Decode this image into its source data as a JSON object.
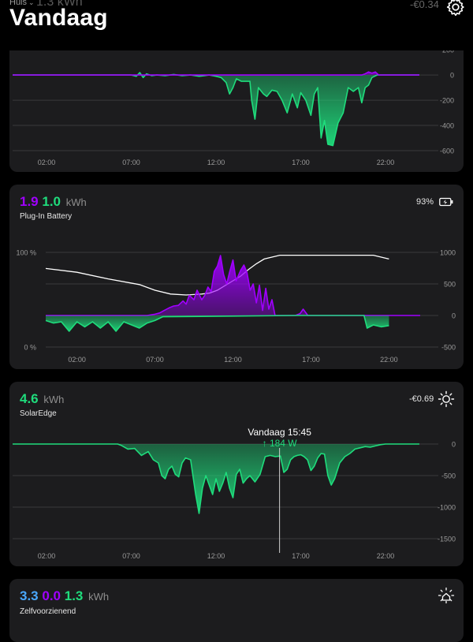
{
  "header": {
    "home_label": "Huis",
    "title": "Vandaag",
    "ghost_partial": "1.3 kWh",
    "ghost_amount": "-€0.34"
  },
  "colors": {
    "grid": "#1fdc7c",
    "purple": "#a000ff",
    "blue": "#4aa8ff",
    "card": "#1c1c1e",
    "background": "#000000"
  },
  "cards": {
    "grid": {
      "yticks": [
        "200",
        "0",
        "-200",
        "-400",
        "-600"
      ],
      "xticks": [
        "02:00",
        "07:00",
        "12:00",
        "17:00",
        "22:00"
      ]
    },
    "battery": {
      "val1": "1.9",
      "val2": "1.0",
      "unit": "kWh",
      "name": "Plug-In Battery",
      "percent": "93%",
      "left_ticks": [
        "100 %",
        "0 %"
      ],
      "yticks": [
        "1000",
        "500",
        "0",
        "-500"
      ],
      "xticks": [
        "02:00",
        "07:00",
        "12:00",
        "17:00",
        "22:00"
      ]
    },
    "solar": {
      "val": "4.6",
      "unit": "kWh",
      "name": "SolarEdge",
      "amount": "-€0.69",
      "tooltip_time": "Vandaag 15:45",
      "tooltip_value": "184 W",
      "yticks": [
        "-1500",
        "-1000",
        "-500",
        "0"
      ],
      "xticks": [
        "02:00",
        "07:00",
        "12:00",
        "17:00",
        "22:00"
      ]
    },
    "self": {
      "val1": "3.3",
      "val2": "0.0",
      "val3": "1.3",
      "unit": "kWh",
      "name": "Zelfvoorzienend"
    }
  },
  "chart_data": [
    {
      "type": "area",
      "xrange": [
        0,
        24
      ],
      "ylim": [
        -650,
        220
      ],
      "series": [
        {
          "color": "#1fdc7c",
          "x": [
            0,
            7,
            7.3,
            7.5,
            7.7,
            7.9,
            8.2,
            8.5,
            9,
            9.5,
            10,
            10.5,
            11,
            11.3,
            11.6,
            12,
            12.3,
            12.6,
            12.8,
            13,
            13.2,
            13.5,
            14,
            14.1,
            14.3,
            14.5,
            14.8,
            15,
            15.3,
            15.6,
            15.9,
            16.2,
            16.5,
            16.8,
            17,
            17.3,
            17.6,
            17.8,
            18,
            18.2,
            18.4,
            18.6,
            18.9,
            19.2,
            19.5,
            19.8,
            20.1,
            20.4,
            20.6,
            20.8,
            21,
            21.2,
            21.5,
            22,
            24
          ],
          "y": [
            0,
            0,
            -10,
            20,
            -20,
            10,
            -5,
            0,
            -5,
            5,
            -5,
            0,
            -10,
            -5,
            0,
            -10,
            -20,
            -60,
            -150,
            -100,
            -30,
            -50,
            -50,
            -200,
            -350,
            -100,
            -150,
            -170,
            -120,
            -130,
            -200,
            -300,
            -150,
            -260,
            -140,
            -200,
            -320,
            -150,
            -100,
            -500,
            -360,
            -550,
            -560,
            -380,
            -300,
            -100,
            -130,
            -100,
            -220,
            -100,
            -80,
            -20,
            0,
            0,
            0
          ]
        },
        {
          "color": "#a000ff",
          "x": [
            0,
            20.6,
            20.8,
            21,
            21.2,
            21.4,
            21.6,
            24
          ],
          "y": [
            0,
            0,
            10,
            25,
            15,
            25,
            0,
            0
          ]
        }
      ],
      "yticks": [
        200,
        0,
        -200,
        -400,
        -600
      ],
      "xticks": [
        2,
        7,
        12,
        17,
        22
      ]
    },
    {
      "type": "area",
      "xrange": [
        0,
        24
      ],
      "ylim": [
        -500,
        1000
      ],
      "left_axis": [
        0,
        100
      ],
      "series": [
        {
          "name": "state-of-charge",
          "color": "#ffffff",
          "axis": "left",
          "x": [
            0,
            2,
            4,
            6,
            7,
            8,
            9,
            10,
            10.5,
            11,
            11.5,
            12,
            12.5,
            13,
            13.5,
            14,
            15,
            16,
            17,
            18,
            19,
            20,
            21,
            21.5,
            22
          ],
          "y": [
            83,
            79,
            72,
            66,
            60,
            56,
            55,
            56,
            57,
            60,
            65,
            70,
            75,
            82,
            88,
            93,
            97,
            97,
            97,
            97,
            97,
            97,
            97,
            95,
            93
          ]
        },
        {
          "name": "charge",
          "color": "#a000ff",
          "x": [
            0,
            6,
            6.5,
            7,
            7.3,
            7.6,
            7.9,
            8.2,
            8.5,
            8.8,
            9,
            9.2,
            9.5,
            9.7,
            10,
            10.2,
            10.4,
            10.6,
            10.8,
            11,
            11.2,
            11.4,
            11.6,
            11.8,
            12,
            12.2,
            12.5,
            12.7,
            12.9,
            13.1,
            13.3,
            13.5,
            13.7,
            13.9,
            14.1,
            14.3,
            14.5,
            14.7,
            15,
            15.5,
            16,
            16.3,
            16.5,
            16.8,
            17,
            20,
            24
          ],
          "y": [
            0,
            0,
            0,
            20,
            40,
            80,
            120,
            150,
            160,
            230,
            180,
            320,
            250,
            400,
            250,
            320,
            450,
            380,
            700,
            780,
            950,
            650,
            500,
            700,
            880,
            550,
            720,
            800,
            680,
            400,
            500,
            200,
            480,
            80,
            430,
            100,
            250,
            0,
            0,
            0,
            0,
            30,
            100,
            0,
            0,
            0,
            0
          ]
        },
        {
          "name": "discharge",
          "color": "#1fdc7c",
          "x": [
            0,
            0.5,
            1,
            1.5,
            2,
            2.5,
            3,
            3.5,
            4,
            4.5,
            5,
            5.5,
            6,
            6.5,
            7,
            7.5,
            16,
            16.5,
            20.4,
            20.6,
            21,
            21.5,
            22
          ],
          "y": [
            -80,
            -120,
            -100,
            -250,
            -100,
            -180,
            -100,
            -200,
            -100,
            -250,
            -100,
            -150,
            -200,
            -120,
            -80,
            -20,
            0,
            0,
            0,
            -200,
            -150,
            -180,
            -160
          ]
        }
      ],
      "yticks": [
        1000,
        500,
        0,
        -500
      ],
      "xticks": [
        2,
        7,
        12,
        17,
        22
      ]
    },
    {
      "type": "area",
      "xrange": [
        0,
        24
      ],
      "ylim": [
        -1600,
        0
      ],
      "series": [
        {
          "color": "#1fdc7c",
          "x": [
            0,
            6.2,
            6.4,
            6.8,
            7.2,
            7.6,
            8,
            8.3,
            8.6,
            8.8,
            9.0,
            9.2,
            9.4,
            9.6,
            9.8,
            10,
            10.2,
            10.5,
            10.8,
            11,
            11.2,
            11.4,
            11.6,
            11.8,
            12,
            12.2,
            12.4,
            12.6,
            12.8,
            13,
            13.2,
            13.4,
            13.6,
            13.8,
            14,
            14.3,
            14.6,
            14.9,
            15.2,
            15.5,
            15.8,
            16,
            16.2,
            16.4,
            16.6,
            16.8,
            17,
            17.2,
            17.4,
            17.6,
            17.8,
            18,
            18.2,
            18.4,
            18.6,
            18.8,
            19.0,
            19.3,
            19.6,
            19.9,
            20.2,
            20.5,
            20.8,
            21.1,
            21.4,
            21.7,
            22,
            24
          ],
          "y": [
            0,
            0,
            -20,
            -80,
            -70,
            -180,
            -120,
            -250,
            -300,
            -500,
            -550,
            -400,
            -350,
            -480,
            -520,
            -300,
            -220,
            -250,
            -800,
            -1100,
            -700,
            -500,
            -650,
            -800,
            -550,
            -750,
            -620,
            -450,
            -700,
            -850,
            -480,
            -400,
            -620,
            -550,
            -500,
            -600,
            -480,
            -200,
            -180,
            -200,
            -190,
            -450,
            -400,
            -250,
            -200,
            -180,
            -170,
            -200,
            -250,
            -420,
            -350,
            -220,
            -150,
            -160,
            -500,
            -650,
            -550,
            -300,
            -200,
            -150,
            -80,
            -60,
            -40,
            -50,
            -30,
            -10,
            0,
            0
          ]
        }
      ],
      "yticks": [
        -1500,
        -1000,
        -500,
        0
      ],
      "xticks": [
        2,
        7,
        12,
        17,
        22
      ],
      "cursor_x": 15.75
    }
  ]
}
